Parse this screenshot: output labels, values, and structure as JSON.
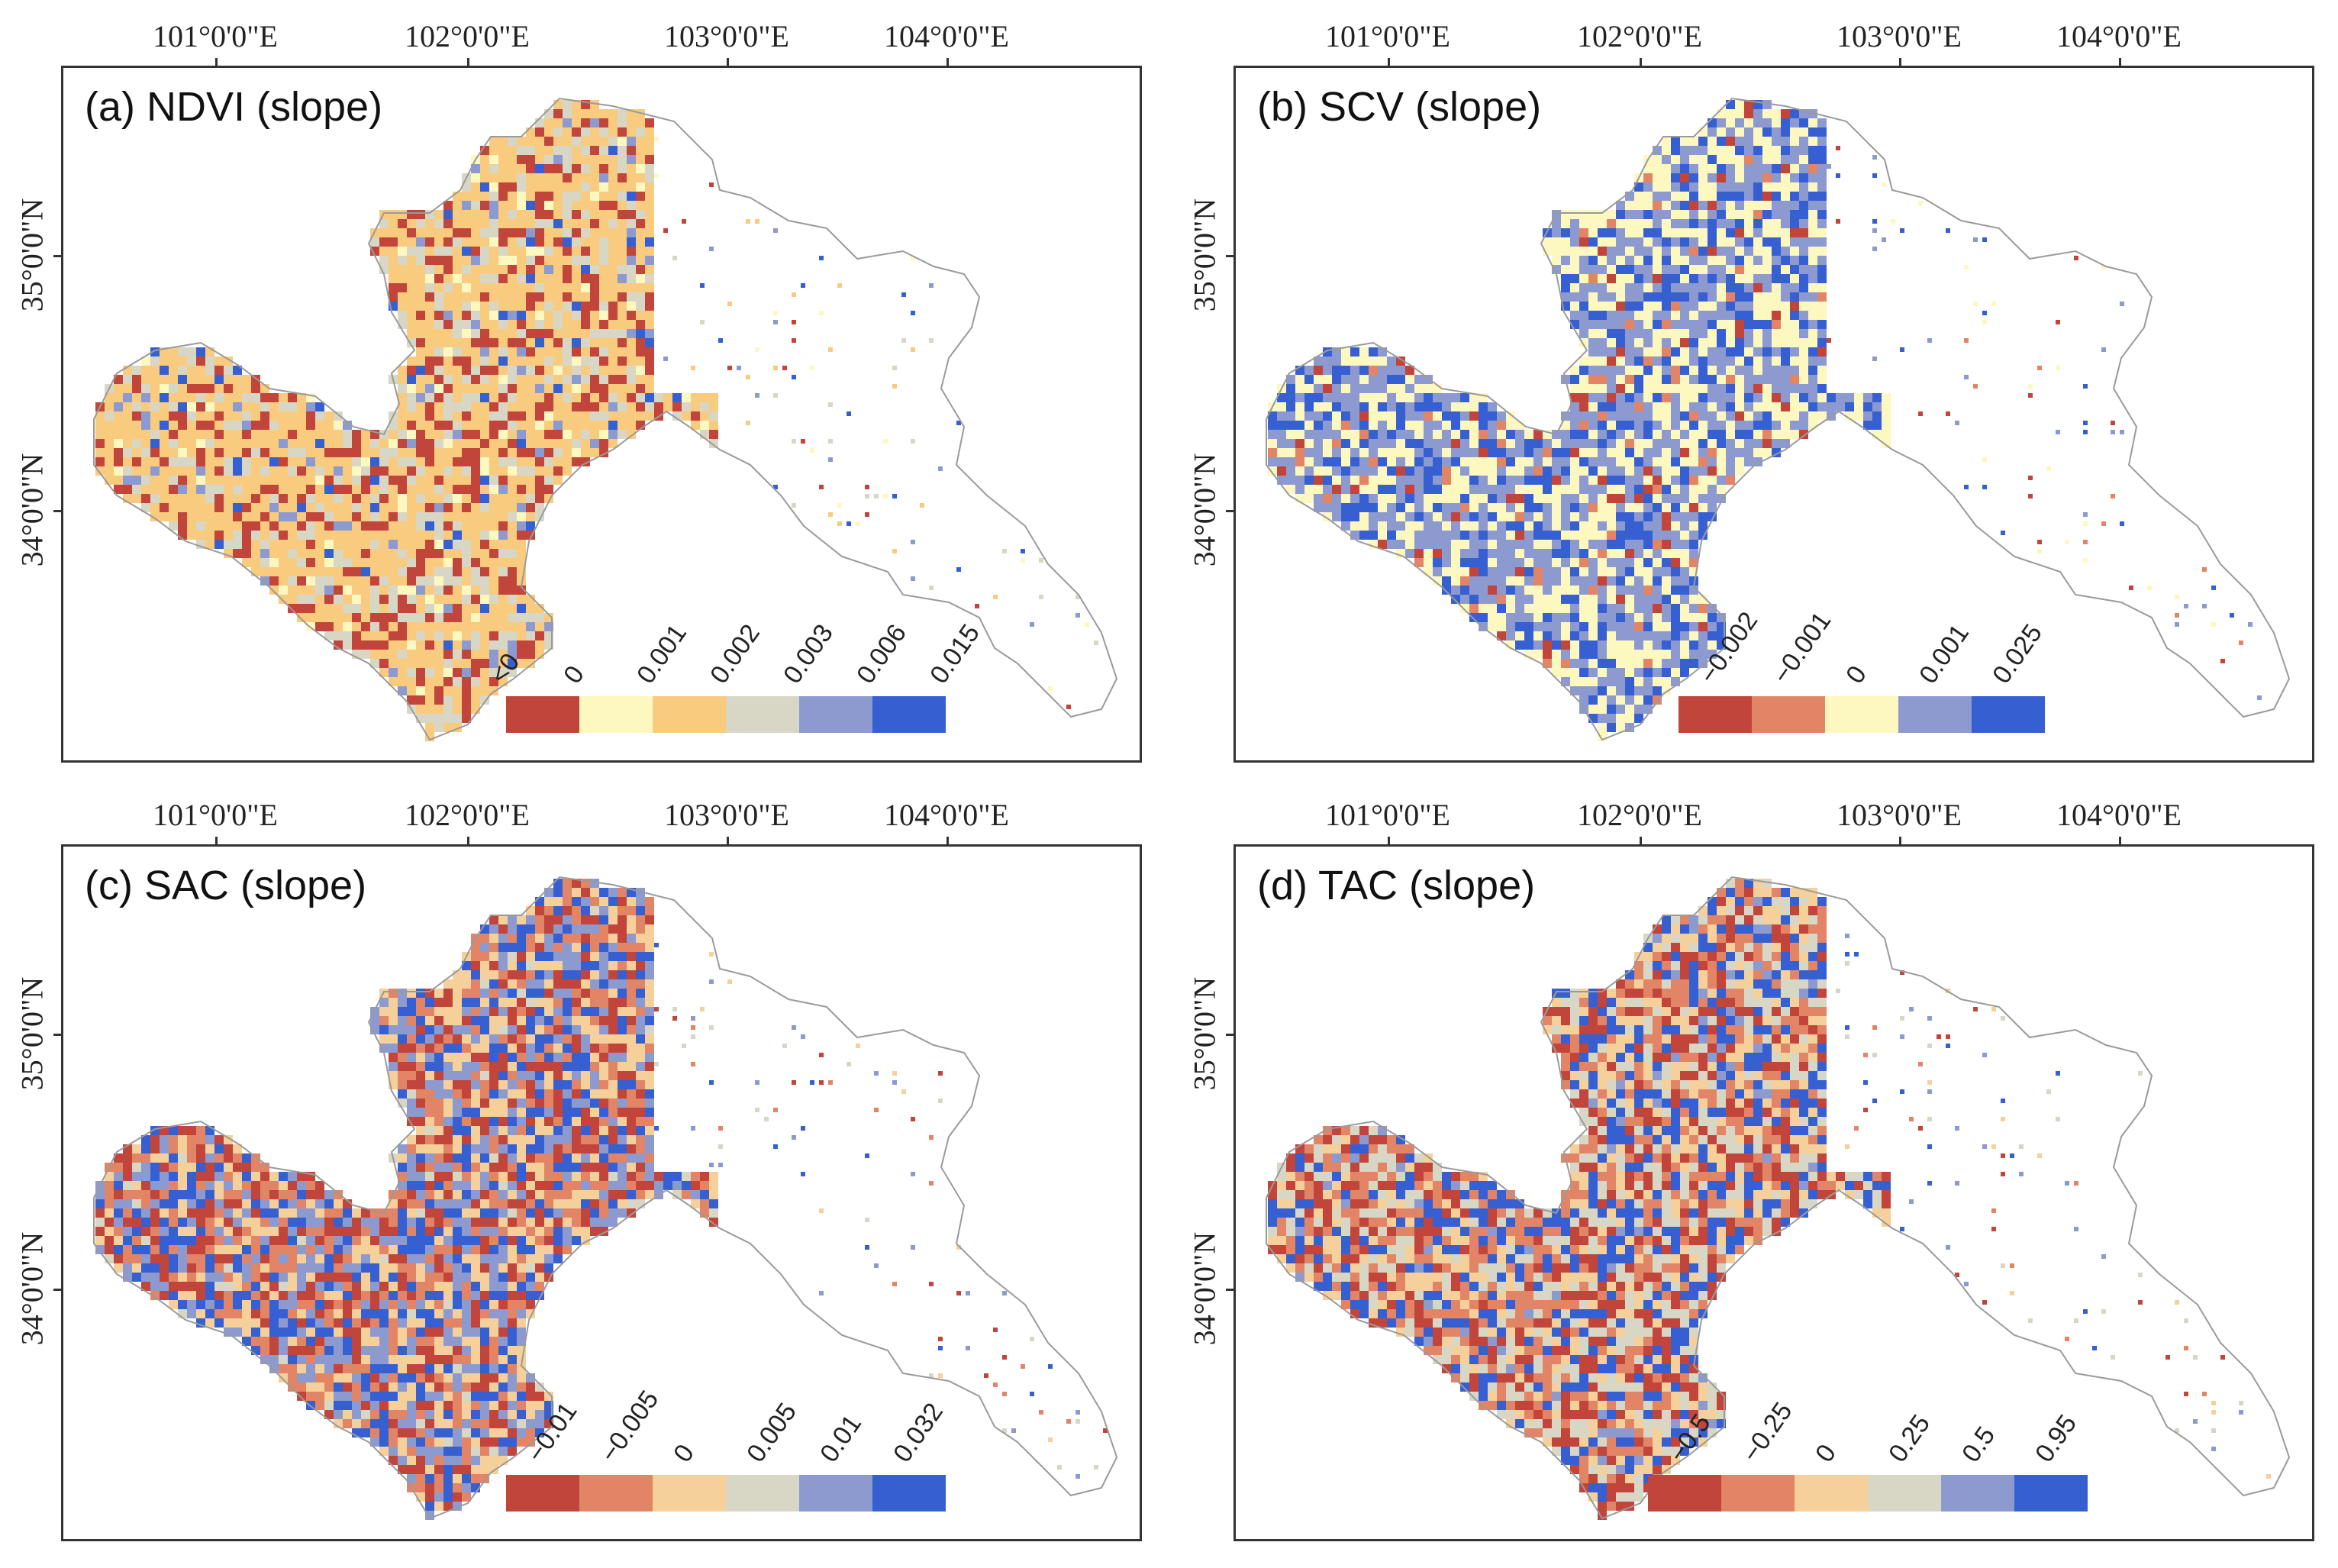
{
  "figure": {
    "lon_ticks": [
      "101°0'0\"E",
      "102°0'0\"E",
      "103°0'0\"E",
      "104°0'0\"E"
    ],
    "lat_ticks": [
      "35°0'0\"N",
      "34°0'0\"N"
    ]
  },
  "panels": [
    {
      "id": "a",
      "title": "(a) NDVI (slope)",
      "legend_labels": [
        "<0",
        "0",
        "0.001",
        "0.002",
        "0.003",
        "0.006",
        "0.015"
      ],
      "legend_colors": [
        "#c1453b",
        "#fdf7c0",
        "#f8cb7f",
        "#d8d7c6",
        "#8d9ad0",
        "#3660d2"
      ],
      "dominant": [
        "#f8cb7f",
        "#f8cb7f",
        "#f8cb7f",
        "#c1453b",
        "#d8d7c6"
      ]
    },
    {
      "id": "b",
      "title": "(b) SCV (slope)",
      "legend_labels": [
        "−0.002",
        "−0.001",
        "0",
        "0.001",
        "0.025"
      ],
      "legend_colors": [
        "#c1453b",
        "#e28566",
        "#fdf7c0",
        "#8d9ad0",
        "#3660d2"
      ],
      "dominant": [
        "#fdf7c0",
        "#8d9ad0",
        "#fdf7c0",
        "#8d9ad0",
        "#3660d2"
      ]
    },
    {
      "id": "c",
      "title": "(c) SAC (slope)",
      "legend_labels": [
        "−0.01",
        "−0.005",
        "0",
        "0.005",
        "0.01",
        "0.032"
      ],
      "legend_colors": [
        "#c1453b",
        "#e28566",
        "#f5d09a",
        "#d8d7c6",
        "#8d9ad0",
        "#3660d2"
      ],
      "dominant": [
        "#c1453b",
        "#3660d2",
        "#f5d09a",
        "#e28566",
        "#8d9ad0"
      ]
    },
    {
      "id": "d",
      "title": "(d) TAC (slope)",
      "legend_labels": [
        "−0.5",
        "−0.25",
        "0",
        "0.25",
        "0.5",
        "0.95"
      ],
      "legend_colors": [
        "#c1453b",
        "#e28566",
        "#f5d09a",
        "#d8d7c6",
        "#8d9ad0",
        "#3660d2"
      ],
      "dominant": [
        "#c1453b",
        "#e28566",
        "#f5d09a",
        "#3660d2",
        "#d8d7c6"
      ]
    }
  ]
}
